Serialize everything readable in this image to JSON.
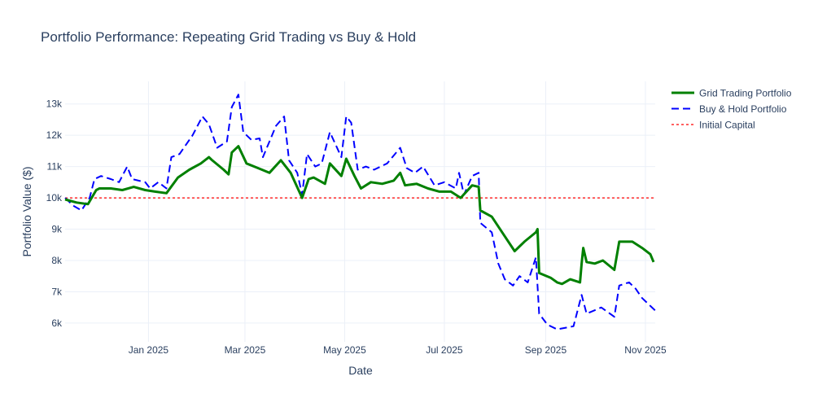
{
  "chart_data": {
    "type": "line",
    "title": "Portfolio Performance: Repeating Grid Trading vs Buy & Hold",
    "xlabel": "Date",
    "ylabel": "Portfolio Value ($)",
    "xlim": [
      "2024-11-11",
      "2025-11-07"
    ],
    "ylim": [
      5400,
      13720
    ],
    "grid": true,
    "legend_position": "top-right, outside plot",
    "x_ticks": [
      {
        "date": "2025-01-01",
        "label": "Jan 2025"
      },
      {
        "date": "2025-03-01",
        "label": "Mar 2025"
      },
      {
        "date": "2025-05-01",
        "label": "May 2025"
      },
      {
        "date": "2025-07-01",
        "label": "Jul 2025"
      },
      {
        "date": "2025-09-01",
        "label": "Sep 2025"
      },
      {
        "date": "2025-11-01",
        "label": "Nov 2025"
      }
    ],
    "y_ticks": [
      {
        "value": 6000,
        "label": "6k"
      },
      {
        "value": 7000,
        "label": "7k"
      },
      {
        "value": 8000,
        "label": "8k"
      },
      {
        "value": 9000,
        "label": "9k"
      },
      {
        "value": 10000,
        "label": "10k"
      },
      {
        "value": 11000,
        "label": "11k"
      },
      {
        "value": 12000,
        "label": "12k"
      },
      {
        "value": 13000,
        "label": "13k"
      }
    ],
    "series": [
      {
        "name": "Grid Trading Portfolio",
        "color": "#008000",
        "style": "solid",
        "x": [
          "2024-11-11",
          "2024-11-18",
          "2024-11-25",
          "2024-11-30",
          "2024-12-02",
          "2024-12-09",
          "2024-12-16",
          "2024-12-23",
          "2024-12-30",
          "2025-01-05",
          "2025-01-12",
          "2025-01-19",
          "2025-01-26",
          "2025-02-02",
          "2025-02-07",
          "2025-02-09",
          "2025-02-16",
          "2025-02-19",
          "2025-02-21",
          "2025-02-25",
          "2025-03-02",
          "2025-03-09",
          "2025-03-16",
          "2025-03-23",
          "2025-03-29",
          "2025-04-05",
          "2025-04-09",
          "2025-04-12",
          "2025-04-19",
          "2025-04-22",
          "2025-04-29",
          "2025-05-02",
          "2025-05-07",
          "2025-05-11",
          "2025-05-17",
          "2025-05-24",
          "2025-05-31",
          "2025-06-04",
          "2025-06-07",
          "2025-06-14",
          "2025-06-21",
          "2025-06-28",
          "2025-07-05",
          "2025-07-11",
          "2025-07-18",
          "2025-07-22",
          "2025-07-23",
          "2025-07-30",
          "2025-08-06",
          "2025-08-13",
          "2025-08-19",
          "2025-08-26",
          "2025-08-27",
          "2025-08-28",
          "2025-09-04",
          "2025-09-08",
          "2025-09-11",
          "2025-09-16",
          "2025-09-22",
          "2025-09-23",
          "2025-09-24",
          "2025-09-26",
          "2025-10-01",
          "2025-10-06",
          "2025-10-13",
          "2025-10-16",
          "2025-10-24",
          "2025-10-30",
          "2025-11-04",
          "2025-11-06"
        ],
        "values": [
          9950,
          9850,
          9800,
          10250,
          10300,
          10300,
          10250,
          10350,
          10250,
          10200,
          10150,
          10650,
          10900,
          11100,
          11300,
          11200,
          10900,
          10750,
          11450,
          11650,
          11100,
          10950,
          10800,
          11200,
          10800,
          10000,
          10600,
          10650,
          10450,
          11100,
          10700,
          11250,
          10700,
          10300,
          10500,
          10450,
          10550,
          10800,
          10400,
          10450,
          10300,
          10200,
          10200,
          10000,
          10400,
          10350,
          9600,
          9400,
          8850,
          8300,
          8600,
          8900,
          9000,
          7600,
          7450,
          7300,
          7250,
          7400,
          7300,
          7900,
          8400,
          7950,
          7900,
          8000,
          7700,
          8600,
          8600,
          8400,
          8200,
          7950
        ]
      },
      {
        "name": "Buy & Hold Portfolio",
        "color": "#0000ff",
        "style": "dash",
        "x": [
          "2024-11-11",
          "2024-11-16",
          "2024-11-21",
          "2024-11-26",
          "2024-11-29",
          "2024-12-03",
          "2024-12-09",
          "2024-12-14",
          "2024-12-19",
          "2024-12-22",
          "2024-12-30",
          "2025-01-02",
          "2025-01-07",
          "2025-01-12",
          "2025-01-15",
          "2025-01-20",
          "2025-01-28",
          "2025-02-03",
          "2025-02-07",
          "2025-02-12",
          "2025-02-18",
          "2025-02-21",
          "2025-02-25",
          "2025-02-28",
          "2025-03-05",
          "2025-03-10",
          "2025-03-12",
          "2025-03-20",
          "2025-03-25",
          "2025-03-28",
          "2025-04-02",
          "2025-04-05",
          "2025-04-08",
          "2025-04-13",
          "2025-04-17",
          "2025-04-22",
          "2025-04-29",
          "2025-05-02",
          "2025-05-05",
          "2025-05-09",
          "2025-05-14",
          "2025-05-19",
          "2025-05-27",
          "2025-06-04",
          "2025-06-08",
          "2025-06-13",
          "2025-06-18",
          "2025-06-25",
          "2025-07-01",
          "2025-07-08",
          "2025-07-10",
          "2025-07-13",
          "2025-07-18",
          "2025-07-22",
          "2025-07-23",
          "2025-07-30",
          "2025-08-03",
          "2025-08-07",
          "2025-08-12",
          "2025-08-16",
          "2025-08-21",
          "2025-08-26",
          "2025-08-28",
          "2025-09-02",
          "2025-09-08",
          "2025-09-18",
          "2025-09-23",
          "2025-09-26",
          "2025-10-05",
          "2025-10-13",
          "2025-10-16",
          "2025-10-22",
          "2025-10-26",
          "2025-10-30",
          "2025-11-07"
        ],
        "values": [
          10000,
          9750,
          9600,
          10000,
          10600,
          10700,
          10600,
          10500,
          11000,
          10600,
          10500,
          10300,
          10500,
          10300,
          11300,
          11400,
          12000,
          12600,
          12350,
          11600,
          11800,
          12900,
          13300,
          12100,
          11850,
          11900,
          11300,
          12300,
          12600,
          11200,
          10800,
          10100,
          11400,
          11000,
          11100,
          12100,
          11300,
          12600,
          12400,
          10900,
          11000,
          10900,
          11100,
          11600,
          10950,
          10800,
          11000,
          10400,
          10500,
          10300,
          10800,
          10100,
          10700,
          10800,
          9200,
          8900,
          7900,
          7400,
          7200,
          7500,
          7300,
          8100,
          6300,
          5950,
          5800,
          5900,
          6900,
          6300,
          6500,
          6200,
          7200,
          7300,
          7100,
          6800,
          6400
        ]
      },
      {
        "name": "Initial Capital",
        "color": "#ff0000",
        "style": "dot",
        "x": [
          "2024-11-11",
          "2025-11-07"
        ],
        "values": [
          10000,
          10000
        ]
      }
    ]
  }
}
